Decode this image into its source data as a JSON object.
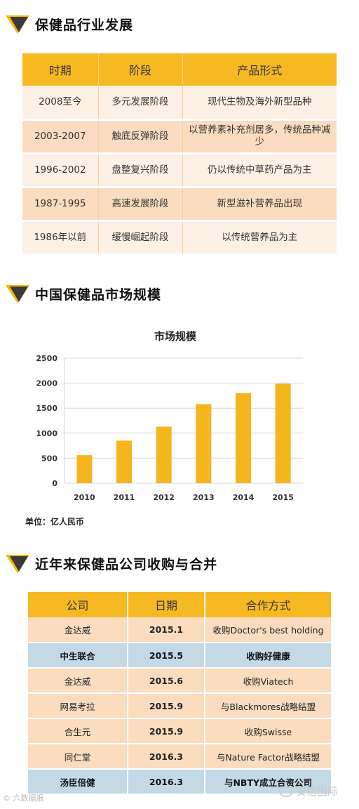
{
  "sections": {
    "development_title": "保健品行业发展",
    "market_title": "中国保健品市场规模",
    "mergers_title": "近年来保健品公司收购与合并"
  },
  "development_table": {
    "headers": [
      "时期",
      "阶段",
      "产品形式"
    ],
    "rows": [
      [
        "2008至今",
        "多元发展阶段",
        "现代生物及海外新型品种"
      ],
      [
        "2003-2007",
        "触底反弹阶段",
        "以营养素补充剂居多，传统品种减少"
      ],
      [
        "1996-2002",
        "盘整复兴阶段",
        "仍以传统中草药产品为主"
      ],
      [
        "1987-1995",
        "高速发展阶段",
        "新型滋补营养品出现"
      ],
      [
        "1986年以前",
        "缓慢崛起阶段",
        "以传统营养品为主"
      ]
    ]
  },
  "chart_data": {
    "type": "bar",
    "title": "市场规模",
    "categories": [
      "2010",
      "2011",
      "2012",
      "2013",
      "2014",
      "2015"
    ],
    "values": [
      560,
      850,
      1130,
      1580,
      1800,
      1990
    ],
    "ylim": [
      0,
      2500
    ],
    "yticks": [
      0,
      500,
      1000,
      1500,
      2000,
      2500
    ],
    "grid": true,
    "bar_color": "#f5b51f"
  },
  "unit_label": "单位：亿人民币",
  "mergers_table": {
    "headers": [
      "公司",
      "日期",
      "合作方式"
    ],
    "rows": [
      {
        "company": "金达威",
        "date": "2015.1",
        "method": "收购Doctor's best holding",
        "style": "peach"
      },
      {
        "company": "中生联合",
        "date": "2015.5",
        "method": "收购好健康",
        "style": "blue"
      },
      {
        "company": "金达威",
        "date": "2015.6",
        "method": "收购Viatech",
        "style": "peach"
      },
      {
        "company": "网易考拉",
        "date": "2015.9",
        "method": "与Blackmores战略结盟",
        "style": "peach"
      },
      {
        "company": "合生元",
        "date": "2015.9",
        "method": "收购Swisse",
        "style": "peach"
      },
      {
        "company": "同仁堂",
        "date": "2016.3",
        "method": "与Nature Factor战略结盟",
        "style": "peach"
      },
      {
        "company": "汤臣倍健",
        "date": "2016.3",
        "method": "与NBTY成立合资公司",
        "style": "blue"
      }
    ]
  },
  "watermarks": {
    "left": "© 六数据报",
    "right": "安信国际"
  },
  "colors": {
    "accent": "#f7b922",
    "dark_triangle": "#3a3a3a",
    "row_peach": "#fbdcbe",
    "row_blue": "#c4d9e6"
  }
}
